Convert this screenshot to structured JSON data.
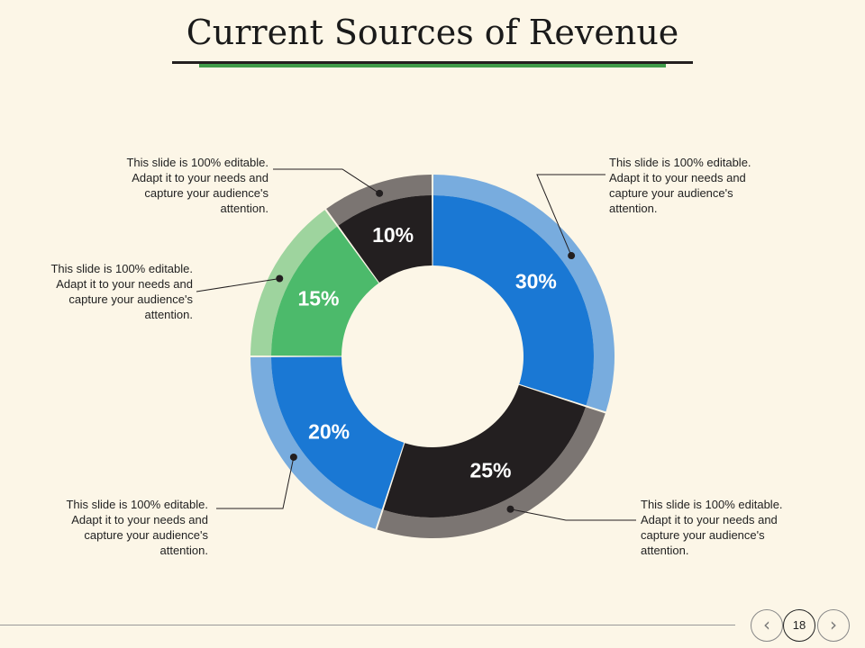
{
  "title": "Current Sources of Revenue",
  "chart_data": {
    "type": "pie",
    "variant": "donut",
    "slices": [
      {
        "value": 30,
        "label": "30%",
        "color": "#1a78d4",
        "outer_color": "#78acde"
      },
      {
        "value": 25,
        "label": "25%",
        "color": "#231f20",
        "outer_color": "#7b7572"
      },
      {
        "value": 20,
        "label": "20%",
        "color": "#1a78d4",
        "outer_color": "#78acde"
      },
      {
        "value": 15,
        "label": "15%",
        "color": "#4cba6b",
        "outer_color": "#9ed49e"
      },
      {
        "value": 10,
        "label": "10%",
        "color": "#231f20",
        "outer_color": "#7b7572"
      }
    ]
  },
  "callouts": {
    "top_right": [
      "This slide is 100% editable.",
      "Adapt it to your needs and",
      "capture your audience's",
      "attention."
    ],
    "bottom_right": [
      "This slide is 100% editable.",
      "Adapt it to your needs and",
      "capture your audience's",
      "attention."
    ],
    "bottom_left": [
      "This slide is 100% editable.",
      "Adapt it to your needs and",
      "capture your audience's",
      "attention."
    ],
    "middle_left": [
      "This slide is 100% editable.",
      "Adapt it to your needs and",
      "capture your audience's",
      "attention."
    ],
    "top_left": [
      "This slide is 100% editable.",
      "Adapt it to your needs and",
      "capture your audience's",
      "attention."
    ]
  },
  "footer": {
    "page_number": "18",
    "prev_icon": "chevron-left-icon",
    "next_icon": "chevron-right-icon",
    "prev_glyph": "‹",
    "next_glyph": "›"
  }
}
